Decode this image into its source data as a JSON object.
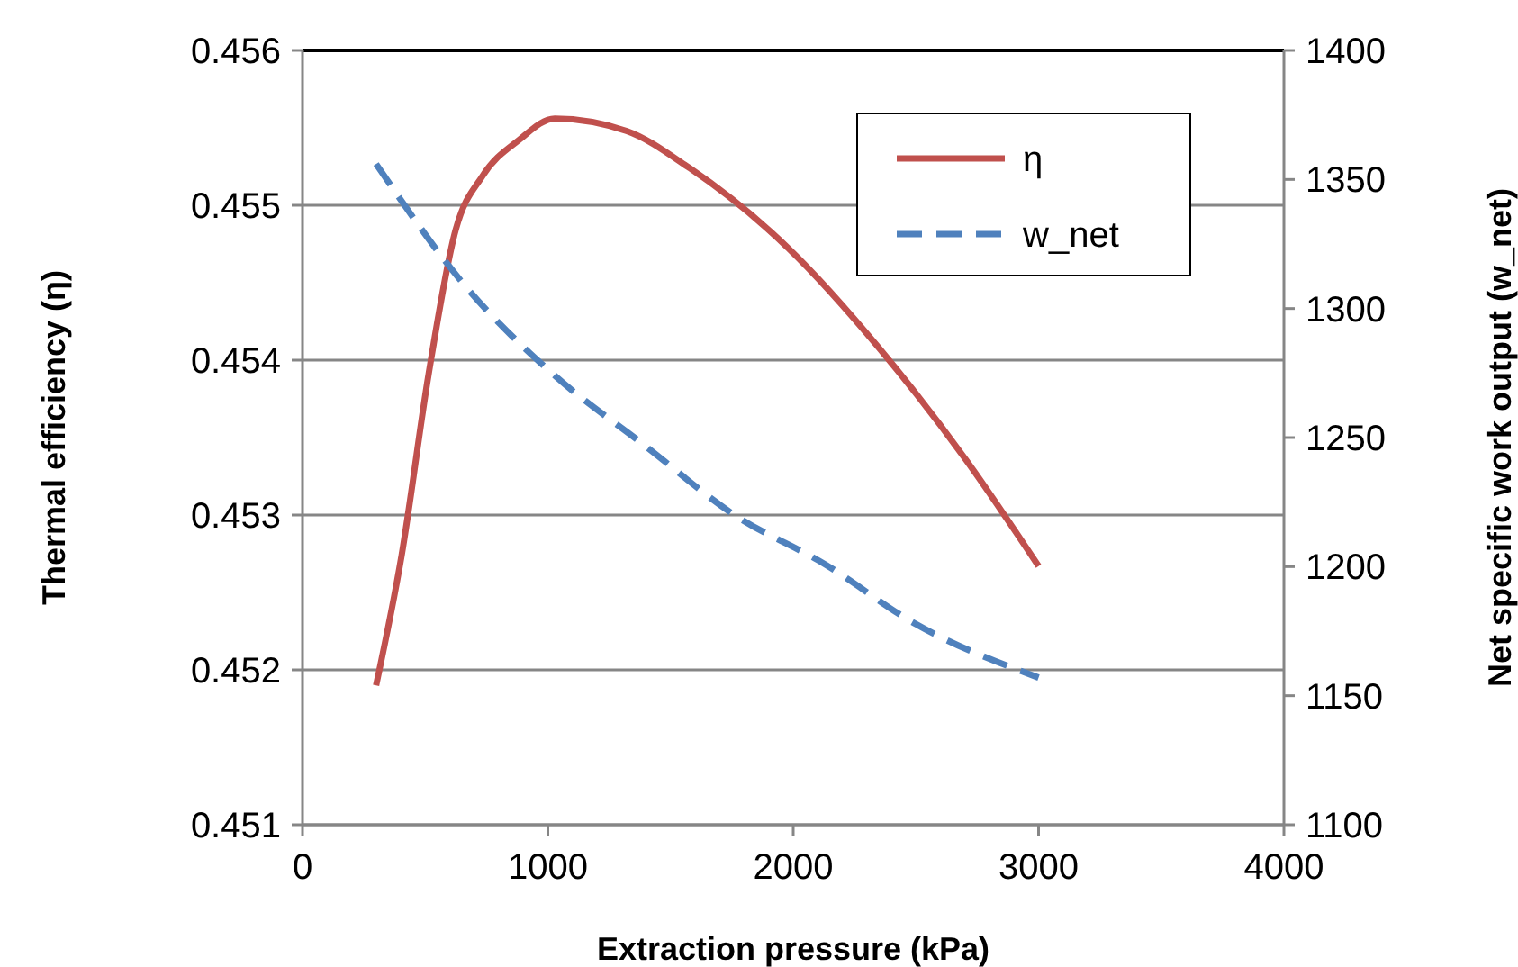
{
  "chart_data": {
    "type": "line",
    "xlabel": "Extraction pressure (kPa)",
    "ylabel": "Thermal efficiency (η)",
    "y2label": "Net specific work output (w_net)",
    "xlim": [
      0,
      4000
    ],
    "xticks": [
      0,
      1000,
      2000,
      3000,
      4000
    ],
    "ylim": [
      0.451,
      0.456
    ],
    "yticks": [
      0.451,
      0.452,
      0.453,
      0.454,
      0.455,
      0.456
    ],
    "y2lim": [
      1100,
      1400
    ],
    "y2ticks": [
      1100,
      1150,
      1200,
      1250,
      1300,
      1350,
      1400
    ],
    "grid": "y",
    "legend": "top right",
    "series": [
      {
        "name": "η",
        "color": "#c0504d",
        "line_style": "solid",
        "x": [
          300,
          404,
          514,
          624,
          734,
          881,
          1028,
          1321,
          1578,
          1982,
          2349,
          2716,
          3000
        ],
        "values": [
          0.4519,
          0.45274,
          0.45391,
          0.45484,
          0.45519,
          0.45542,
          0.45556,
          0.45548,
          0.45524,
          0.45472,
          0.45408,
          0.45333,
          0.45267
        ]
      },
      {
        "name": "w_net",
        "color": "#4f81bd",
        "line_style": "dashed",
        "axis": "y2",
        "x": [
          300,
          661,
          1028,
          1394,
          1761,
          2128,
          2495,
          3000
        ],
        "values": [
          1356,
          1309,
          1274,
          1247,
          1220,
          1201,
          1178,
          1157
        ]
      }
    ]
  }
}
